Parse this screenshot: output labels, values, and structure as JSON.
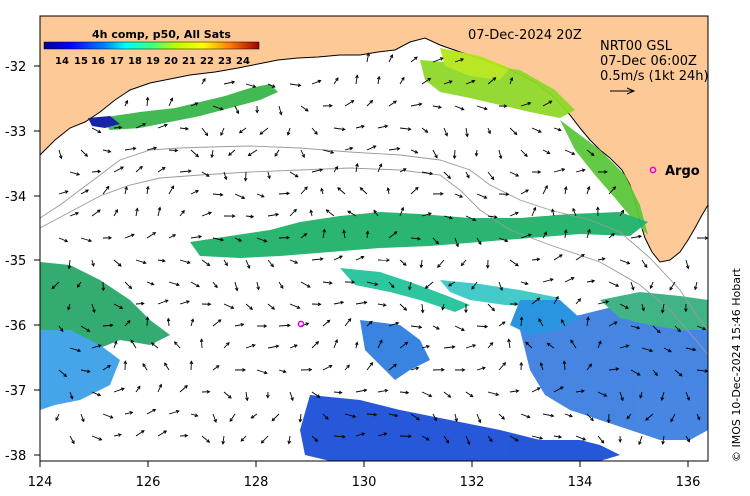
{
  "legend": {
    "title": "4h comp, p50, All Sats",
    "ticks": [
      "14",
      "15",
      "16",
      "17",
      "18",
      "19",
      "20",
      "21",
      "22",
      "23",
      "24"
    ]
  },
  "header": {
    "date": "07-Dec-2024 20Z",
    "product": "NRT00 GSL",
    "current_time": "07-Dec 06:00Z",
    "scale": "0.5m/s (1kt 24h)"
  },
  "markers": {
    "argo_label": "Argo"
  },
  "axes": {
    "x_ticks": [
      "124",
      "126",
      "128",
      "130",
      "132",
      "134",
      "136"
    ],
    "y_ticks": [
      "-32",
      "-33",
      "-34",
      "-35",
      "-36",
      "-37",
      "-38"
    ]
  },
  "credit": "© IMOS 10-Dec-2024 15:46 Hobart",
  "colors": {
    "land": "#fdc996",
    "ocean": "#ffffff",
    "argo": "#e000e0"
  }
}
